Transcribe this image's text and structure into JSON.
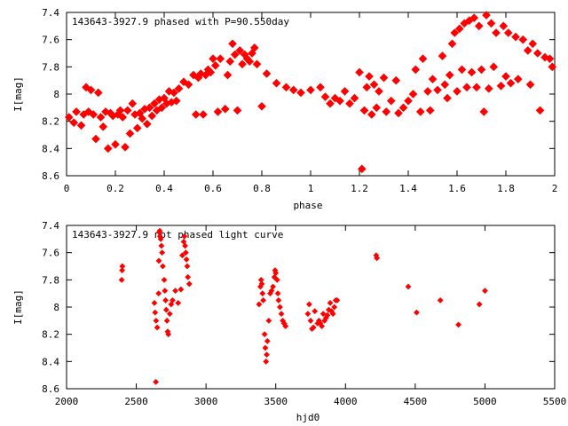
{
  "chart_data": [
    {
      "type": "scatter",
      "title": "143643-3927.9 phased with P=90.550day",
      "xlabel": "phase",
      "ylabel": "I[mag]",
      "xlim": [
        0,
        2
      ],
      "ylim": [
        8.6,
        7.4
      ],
      "y_inverted": true,
      "grid": false,
      "marker_color": "#ff0000",
      "x_ticks": [
        "0",
        "0.2",
        "0.4",
        "0.6",
        "0.8",
        "1",
        "1.2",
        "1.4",
        "1.6",
        "1.8",
        "2"
      ],
      "y_ticks": [
        "7.4",
        "7.6",
        "7.8",
        "8",
        "8.2",
        "8.4",
        "8.6"
      ],
      "points": [
        [
          0.01,
          8.17
        ],
        [
          0.03,
          8.21
        ],
        [
          0.04,
          8.13
        ],
        [
          0.06,
          8.23
        ],
        [
          0.07,
          8.15
        ],
        [
          0.08,
          7.95
        ],
        [
          0.09,
          8.13
        ],
        [
          0.1,
          7.97
        ],
        [
          0.11,
          8.15
        ],
        [
          0.12,
          8.33
        ],
        [
          0.13,
          7.99
        ],
        [
          0.14,
          8.17
        ],
        [
          0.15,
          8.24
        ],
        [
          0.16,
          8.13
        ],
        [
          0.17,
          8.4
        ],
        [
          0.18,
          8.14
        ],
        [
          0.19,
          8.16
        ],
        [
          0.2,
          8.37
        ],
        [
          0.21,
          8.15
        ],
        [
          0.22,
          8.12
        ],
        [
          0.23,
          8.17
        ],
        [
          0.24,
          8.39
        ],
        [
          0.25,
          8.12
        ],
        [
          0.26,
          8.29
        ],
        [
          0.27,
          8.07
        ],
        [
          0.28,
          8.15
        ],
        [
          0.29,
          8.25
        ],
        [
          0.3,
          8.14
        ],
        [
          0.31,
          8.18
        ],
        [
          0.32,
          8.11
        ],
        [
          0.33,
          8.22
        ],
        [
          0.34,
          8.1
        ],
        [
          0.35,
          8.16
        ],
        [
          0.36,
          8.07
        ],
        [
          0.37,
          8.12
        ],
        [
          0.38,
          8.04
        ],
        [
          0.39,
          8.1
        ],
        [
          0.4,
          8.03
        ],
        [
          0.41,
          8.07
        ],
        [
          0.42,
          7.98
        ],
        [
          0.43,
          8.06
        ],
        [
          0.44,
          7.99
        ],
        [
          0.45,
          8.05
        ],
        [
          0.46,
          7.96
        ],
        [
          0.48,
          7.91
        ],
        [
          0.5,
          7.93
        ],
        [
          0.52,
          7.86
        ],
        [
          0.53,
          8.15
        ],
        [
          0.54,
          7.88
        ],
        [
          0.55,
          7.85
        ],
        [
          0.56,
          8.15
        ],
        [
          0.57,
          7.86
        ],
        [
          0.58,
          7.82
        ],
        [
          0.59,
          7.84
        ],
        [
          0.6,
          7.74
        ],
        [
          0.61,
          7.79
        ],
        [
          0.62,
          8.13
        ],
        [
          0.63,
          7.74
        ],
        [
          0.65,
          8.11
        ],
        [
          0.66,
          7.86
        ],
        [
          0.67,
          7.76
        ],
        [
          0.68,
          7.63
        ],
        [
          0.69,
          7.71
        ],
        [
          0.7,
          8.12
        ],
        [
          0.71,
          7.68
        ],
        [
          0.72,
          7.78
        ],
        [
          0.73,
          7.71
        ],
        [
          0.74,
          7.74
        ],
        [
          0.75,
          7.76
        ],
        [
          0.76,
          7.7
        ],
        [
          0.77,
          7.66
        ],
        [
          0.78,
          7.78
        ],
        [
          0.8,
          8.09
        ],
        [
          0.82,
          7.85
        ],
        [
          0.86,
          7.92
        ],
        [
          0.9,
          7.95
        ],
        [
          0.93,
          7.97
        ],
        [
          0.96,
          7.99
        ],
        [
          1.0,
          7.97
        ],
        [
          1.04,
          7.95
        ],
        [
          1.06,
          8.02
        ],
        [
          1.08,
          8.07
        ],
        [
          1.1,
          8.03
        ],
        [
          1.12,
          8.05
        ],
        [
          1.14,
          7.98
        ],
        [
          1.16,
          8.07
        ],
        [
          1.18,
          8.03
        ],
        [
          1.2,
          7.84
        ],
        [
          1.21,
          8.55
        ],
        [
          1.22,
          8.12
        ],
        [
          1.23,
          7.95
        ],
        [
          1.24,
          7.87
        ],
        [
          1.25,
          8.15
        ],
        [
          1.26,
          7.93
        ],
        [
          1.27,
          8.1
        ],
        [
          1.28,
          7.98
        ],
        [
          1.3,
          7.88
        ],
        [
          1.31,
          8.13
        ],
        [
          1.33,
          8.05
        ],
        [
          1.35,
          7.9
        ],
        [
          1.36,
          8.14
        ],
        [
          1.38,
          8.1
        ],
        [
          1.4,
          8.05
        ],
        [
          1.42,
          8.0
        ],
        [
          1.43,
          7.82
        ],
        [
          1.45,
          8.13
        ],
        [
          1.46,
          7.74
        ],
        [
          1.48,
          7.98
        ],
        [
          1.49,
          8.12
        ],
        [
          1.5,
          7.89
        ],
        [
          1.52,
          7.97
        ],
        [
          1.54,
          7.72
        ],
        [
          1.55,
          7.93
        ],
        [
          1.56,
          8.03
        ],
        [
          1.57,
          7.86
        ],
        [
          1.58,
          7.63
        ],
        [
          1.59,
          7.55
        ],
        [
          1.6,
          7.98
        ],
        [
          1.61,
          7.52
        ],
        [
          1.62,
          7.82
        ],
        [
          1.63,
          7.48
        ],
        [
          1.64,
          7.95
        ],
        [
          1.65,
          7.46
        ],
        [
          1.66,
          7.84
        ],
        [
          1.67,
          7.44
        ],
        [
          1.68,
          7.95
        ],
        [
          1.69,
          7.5
        ],
        [
          1.7,
          7.82
        ],
        [
          1.71,
          8.13
        ],
        [
          1.72,
          7.42
        ],
        [
          1.73,
          7.96
        ],
        [
          1.74,
          7.48
        ],
        [
          1.75,
          7.8
        ],
        [
          1.76,
          7.55
        ],
        [
          1.78,
          7.94
        ],
        [
          1.79,
          7.5
        ],
        [
          1.8,
          7.87
        ],
        [
          1.81,
          7.55
        ],
        [
          1.82,
          7.92
        ],
        [
          1.84,
          7.58
        ],
        [
          1.85,
          7.89
        ],
        [
          1.87,
          7.6
        ],
        [
          1.89,
          7.68
        ],
        [
          1.9,
          7.93
        ],
        [
          1.91,
          7.63
        ],
        [
          1.93,
          7.7
        ],
        [
          1.94,
          8.12
        ],
        [
          1.96,
          7.73
        ],
        [
          1.98,
          7.74
        ],
        [
          1.99,
          7.8
        ]
      ]
    },
    {
      "type": "scatter",
      "title": "143643-3927.9 not phased light curve",
      "xlabel": "hjd0",
      "ylabel": "I[mag]",
      "xlim": [
        2000,
        5500
      ],
      "ylim": [
        8.6,
        7.4
      ],
      "y_inverted": true,
      "grid": false,
      "marker_color": "#ff0000",
      "x_ticks": [
        "2000",
        "2500",
        "3000",
        "3500",
        "4000",
        "4500",
        "5000",
        "5500"
      ],
      "y_ticks": [
        "7.4",
        "7.6",
        "7.8",
        "8",
        "8.2",
        "8.4",
        "8.6"
      ],
      "points": [
        [
          2395,
          7.8
        ],
        [
          2398,
          7.73
        ],
        [
          2400,
          7.7
        ],
        [
          2630,
          7.97
        ],
        [
          2635,
          8.04
        ],
        [
          2640,
          8.55
        ],
        [
          2642,
          8.1
        ],
        [
          2650,
          8.15
        ],
        [
          2660,
          7.9
        ],
        [
          2662,
          7.66
        ],
        [
          2665,
          7.45
        ],
        [
          2668,
          7.44
        ],
        [
          2670,
          7.48
        ],
        [
          2675,
          7.5
        ],
        [
          2680,
          7.55
        ],
        [
          2685,
          7.6
        ],
        [
          2690,
          7.7
        ],
        [
          2700,
          7.8
        ],
        [
          2705,
          7.88
        ],
        [
          2710,
          7.95
        ],
        [
          2715,
          8.02
        ],
        [
          2720,
          8.1
        ],
        [
          2725,
          8.18
        ],
        [
          2730,
          8.2
        ],
        [
          2740,
          8.05
        ],
        [
          2750,
          7.98
        ],
        [
          2760,
          7.95
        ],
        [
          2780,
          7.88
        ],
        [
          2800,
          7.97
        ],
        [
          2820,
          7.87
        ],
        [
          2830,
          7.62
        ],
        [
          2840,
          7.52
        ],
        [
          2845,
          7.48
        ],
        [
          2850,
          7.55
        ],
        [
          2855,
          7.6
        ],
        [
          2860,
          7.65
        ],
        [
          2865,
          7.7
        ],
        [
          2870,
          7.78
        ],
        [
          2880,
          7.83
        ],
        [
          3380,
          7.98
        ],
        [
          3390,
          7.85
        ],
        [
          3395,
          7.8
        ],
        [
          3400,
          7.83
        ],
        [
          3405,
          7.9
        ],
        [
          3410,
          7.95
        ],
        [
          3420,
          8.2
        ],
        [
          3425,
          8.3
        ],
        [
          3430,
          8.4
        ],
        [
          3435,
          8.35
        ],
        [
          3440,
          8.25
        ],
        [
          3450,
          8.1
        ],
        [
          3460,
          7.9
        ],
        [
          3470,
          7.88
        ],
        [
          3480,
          7.85
        ],
        [
          3490,
          7.78
        ],
        [
          3495,
          7.73
        ],
        [
          3500,
          7.75
        ],
        [
          3510,
          7.8
        ],
        [
          3515,
          7.9
        ],
        [
          3520,
          7.95
        ],
        [
          3530,
          8.0
        ],
        [
          3540,
          8.05
        ],
        [
          3550,
          8.1
        ],
        [
          3560,
          8.12
        ],
        [
          3570,
          8.14
        ],
        [
          3730,
          8.05
        ],
        [
          3740,
          7.98
        ],
        [
          3750,
          8.1
        ],
        [
          3760,
          8.16
        ],
        [
          3770,
          8.15
        ],
        [
          3780,
          8.03
        ],
        [
          3800,
          8.12
        ],
        [
          3810,
          8.1
        ],
        [
          3820,
          8.12
        ],
        [
          3830,
          8.14
        ],
        [
          3840,
          8.05
        ],
        [
          3850,
          8.1
        ],
        [
          3860,
          8.08
        ],
        [
          3870,
          8.06
        ],
        [
          3880,
          8.02
        ],
        [
          3890,
          7.97
        ],
        [
          3900,
          8.03
        ],
        [
          3910,
          8.05
        ],
        [
          3920,
          8.0
        ],
        [
          3930,
          7.95
        ],
        [
          3940,
          7.95
        ],
        [
          4220,
          7.62
        ],
        [
          4225,
          7.64
        ],
        [
          4450,
          7.85
        ],
        [
          4510,
          8.04
        ],
        [
          4680,
          7.95
        ],
        [
          4810,
          8.13
        ],
        [
          4960,
          7.98
        ],
        [
          5000,
          7.88
        ]
      ]
    }
  ]
}
